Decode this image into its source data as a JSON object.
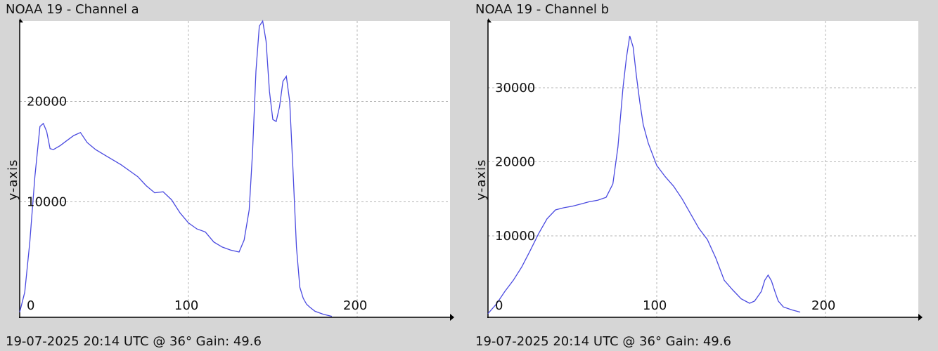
{
  "chart_data": [
    {
      "type": "line",
      "title": "NOAA 19 - Channel a",
      "footer": "19-07-2025 20:14 UTC @ 36° Gain: 49.6",
      "xlabel": "",
      "ylabel": "y-axis",
      "xlim": [
        0,
        255
      ],
      "ylim": [
        -1500,
        28000
      ],
      "x_ticks": [
        0,
        100,
        200
      ],
      "y_ticks": [
        10000,
        20000
      ],
      "grid": true,
      "colors": {
        "background": "#ffffff",
        "line": "#4a4ae0",
        "grid": "#b5b5b5",
        "frame": "#d6d6d6"
      },
      "series": [
        {
          "x": [
            0,
            3,
            6,
            9,
            12,
            14,
            16,
            18,
            20,
            24,
            28,
            32,
            36,
            40,
            45,
            50,
            55,
            60,
            65,
            70,
            75,
            80,
            85,
            90,
            95,
            100,
            105,
            110,
            115,
            120,
            125,
            130,
            133,
            136,
            138,
            140,
            142,
            144,
            146,
            148,
            150,
            152,
            154,
            156,
            158,
            160,
            162,
            164,
            166,
            168,
            170,
            172,
            175,
            180,
            185
          ],
          "y": [
            -1000,
            1000,
            6000,
            12500,
            17500,
            17800,
            17000,
            15300,
            15200,
            15600,
            16100,
            16600,
            16900,
            15900,
            15200,
            14700,
            14200,
            13700,
            13100,
            12500,
            11600,
            10900,
            11000,
            10200,
            8900,
            7900,
            7300,
            7000,
            6000,
            5500,
            5200,
            5000,
            6200,
            9200,
            15000,
            23000,
            27500,
            28000,
            26000,
            21000,
            18200,
            18000,
            19500,
            22000,
            22500,
            20000,
            13000,
            5500,
            1500,
            400,
            -200,
            -500,
            -900,
            -1200,
            -1400
          ]
        }
      ]
    },
    {
      "type": "line",
      "title": "NOAA 19 - Channel b",
      "footer": "19-07-2025 20:14 UTC @ 36° Gain: 49.6",
      "xlabel": "",
      "ylabel": "y-axis",
      "xlim": [
        0,
        255
      ],
      "ylim": [
        -1000,
        39000
      ],
      "x_ticks": [
        0,
        100,
        200
      ],
      "y_ticks": [
        10000,
        20000,
        30000
      ],
      "grid": true,
      "colors": {
        "background": "#ffffff",
        "line": "#4a4ae0",
        "grid": "#b5b5b5",
        "frame": "#d6d6d6"
      },
      "series": [
        {
          "x": [
            0,
            5,
            10,
            15,
            20,
            25,
            30,
            35,
            40,
            45,
            50,
            55,
            60,
            65,
            70,
            74,
            77,
            80,
            82,
            84,
            86,
            88,
            90,
            92,
            95,
            100,
            105,
            110,
            115,
            120,
            125,
            130,
            135,
            140,
            145,
            150,
            155,
            158,
            162,
            164,
            166,
            168,
            170,
            172,
            175,
            180,
            185
          ],
          "y": [
            -500,
            800,
            2500,
            4000,
            5800,
            8000,
            10300,
            12300,
            13500,
            13800,
            14000,
            14300,
            14600,
            14800,
            15200,
            17000,
            22000,
            30000,
            34000,
            37000,
            35500,
            31500,
            28000,
            25000,
            22500,
            19500,
            18000,
            16700,
            15000,
            13000,
            11000,
            9500,
            7000,
            4000,
            2700,
            1500,
            900,
            1200,
            2500,
            4000,
            4700,
            3900,
            2500,
            1200,
            400,
            0,
            -300
          ]
        }
      ]
    }
  ]
}
